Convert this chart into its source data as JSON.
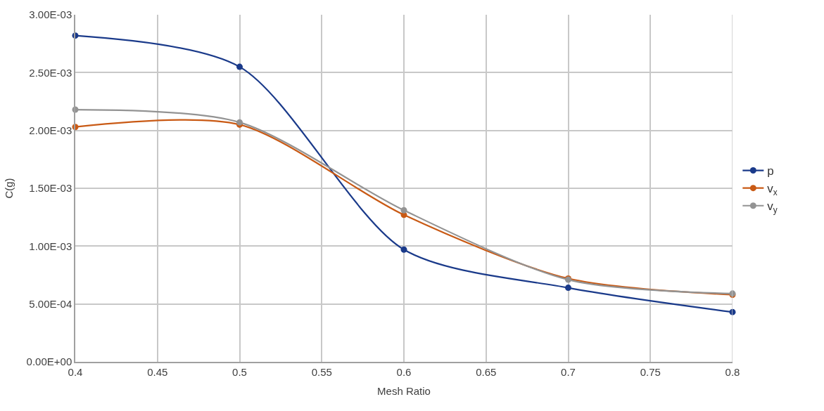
{
  "chart_data": {
    "type": "line",
    "xlabel": "Mesh Ratio",
    "ylabel": "C(g)",
    "x": [
      0.4,
      0.5,
      0.6,
      0.7,
      0.8
    ],
    "series": [
      {
        "name": "p",
        "color": "#1a3a8a",
        "values": [
          0.00282,
          0.00255,
          0.00097,
          0.00064,
          0.00043
        ]
      },
      {
        "name": "v$_{x}$",
        "color": "#c95a15",
        "values": [
          0.00203,
          0.00205,
          0.00127,
          0.00072,
          0.00058
        ]
      },
      {
        "name": "v$_{y}$",
        "color": "#939393",
        "values": [
          0.00218,
          0.00207,
          0.00131,
          0.00071,
          0.00059
        ]
      }
    ],
    "xlim": [
      0.4,
      0.8
    ],
    "xticks": [
      0.4,
      0.45,
      0.5,
      0.55,
      0.6,
      0.65,
      0.7,
      0.75,
      0.8
    ],
    "ylim": [
      0,
      0.003
    ],
    "yticks": [
      {
        "value": 0,
        "label": "0.00E+00"
      },
      {
        "value": 0.0005,
        "label": "5.00E-04"
      },
      {
        "value": 0.001,
        "label": "1.00E-03"
      },
      {
        "value": 0.0015,
        "label": "1.50E-03"
      },
      {
        "value": 0.002,
        "label": "2.00E-03"
      },
      {
        "value": 0.0025,
        "label": "2.50E-03"
      },
      {
        "value": 0.003,
        "label": "3.00E-03"
      }
    ],
    "grid": true,
    "legend": "right",
    "marker": "circle",
    "line_style": "solid"
  }
}
